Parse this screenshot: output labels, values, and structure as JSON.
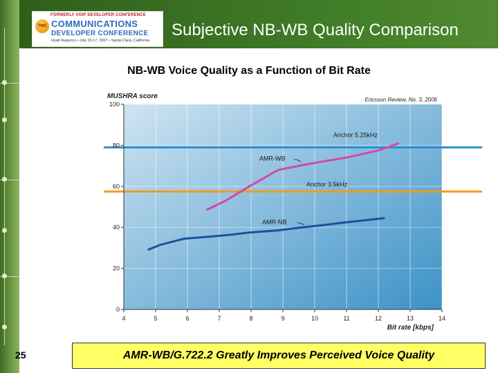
{
  "header": {
    "title": "Subjective NB-WB Quality Comparison",
    "logo": {
      "top_text": "FORMERLY VOIP DEVELOPER CONFERENCE",
      "badge": "TMC",
      "line1": "COMMUNICATIONS",
      "line2": "DEVELOPER CONFERENCE",
      "line3": "Hyatt Regency • July 15-17, 2007 • Santa Clara, California"
    }
  },
  "chart_data": {
    "type": "line",
    "title": "NB-WB Voice Quality as a Function of Bit Rate",
    "source": "Ericsson Review, No. 3, 2006",
    "ylabel": "MUSHRA score",
    "xlabel": "Bit rate [kbps]",
    "xlim": [
      4,
      14
    ],
    "ylim": [
      0,
      100
    ],
    "xticks": [
      "4",
      "5",
      "6",
      "7",
      "8",
      "9",
      "10",
      "11",
      "12",
      "13",
      "14"
    ],
    "yticks": [
      "0",
      "20",
      "40",
      "60",
      "80",
      "100"
    ],
    "grid": true,
    "colors": {
      "background_top": "#cfe4f2",
      "background_bottom": "#3c92c6",
      "anchor_525": "#2b8fd6",
      "anchor_35": "#f39a1d",
      "amr_wb": "#d04aa5",
      "amr_nb": "#1e4f9c"
    },
    "reference_lines": [
      {
        "name": "Anchor 5.25kHz",
        "y": 79
      },
      {
        "name": "Anchor 3.5kHz",
        "y": 57.5
      }
    ],
    "series": [
      {
        "name": "AMR-WB",
        "x": [
          6.6,
          7.2,
          8.0,
          8.85,
          9.5,
          10.2,
          11.0,
          12.0,
          12.65
        ],
        "y": [
          48.5,
          53,
          60.5,
          68,
          70,
          72,
          74,
          77.5,
          81
        ]
      },
      {
        "name": "AMR-NB",
        "x": [
          4.75,
          5.15,
          5.9,
          6.7,
          7.4,
          7.95,
          8.8,
          9.6,
          10.2,
          11.0,
          12.2
        ],
        "y": [
          29,
          31.5,
          34.5,
          35.5,
          36.5,
          37.5,
          38.5,
          40,
          41,
          42.5,
          44.5
        ]
      }
    ]
  },
  "footer": {
    "page_number": "25",
    "banner": "AMR-WB/G.722.2 Greatly Improves Perceived Voice Quality"
  }
}
